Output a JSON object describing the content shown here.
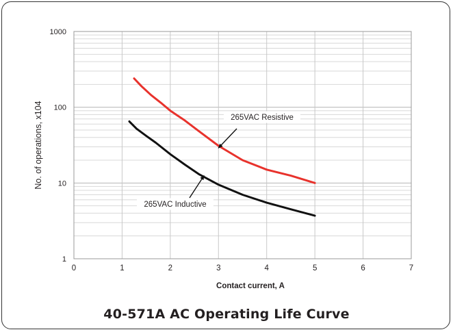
{
  "caption": "40-571A AC Operating Life Curve",
  "chart_data": {
    "type": "line",
    "xlabel": "Contact current, A",
    "ylabel": "No. of operations, x104",
    "xlim": [
      0,
      7
    ],
    "ylim": [
      1,
      1000
    ],
    "y_scale": "log",
    "x_ticks": [
      "0",
      "1",
      "2",
      "3",
      "4",
      "5",
      "6",
      "7"
    ],
    "y_ticks": [
      {
        "value": 1,
        "label": "1"
      },
      {
        "value": 10,
        "label": "10"
      },
      {
        "value": 100,
        "label": "100"
      },
      {
        "value": 1000,
        "label": "1000"
      }
    ],
    "grid": true,
    "series": [
      {
        "name": "265VAC Resistive",
        "color": "#e8322c",
        "x": [
          1.25,
          1.4,
          1.6,
          1.8,
          2.0,
          2.3,
          2.6,
          3.0,
          3.5,
          4.0,
          4.5,
          5.0
        ],
        "y": [
          240,
          190,
          145,
          115,
          90,
          67,
          48,
          31,
          20,
          15,
          12.5,
          10
        ]
      },
      {
        "name": "265VAC Inductive",
        "color": "#111111",
        "x": [
          1.15,
          1.3,
          1.5,
          1.7,
          2.0,
          2.3,
          2.6,
          3.0,
          3.5,
          4.0,
          4.5,
          5.0
        ],
        "y": [
          65,
          52,
          42,
          34,
          24,
          17.5,
          13,
          9.5,
          7,
          5.5,
          4.5,
          3.7
        ]
      }
    ],
    "annotations": [
      {
        "text": "265VAC Resistive",
        "series": "265VAC Resistive",
        "arrow_to": [
          3.0,
          29
        ]
      },
      {
        "text": "265VAC Inductive",
        "series": "265VAC Inductive",
        "arrow_to": [
          2.7,
          12.5
        ]
      }
    ]
  }
}
